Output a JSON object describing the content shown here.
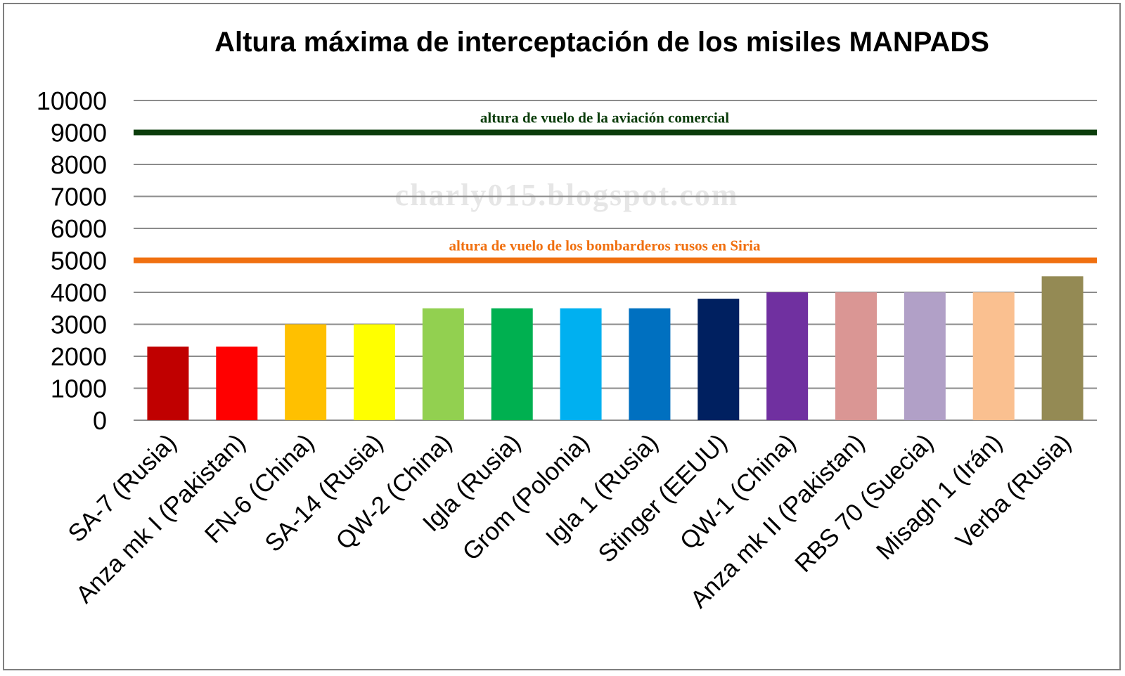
{
  "chart_data": {
    "type": "bar",
    "title": "Altura máxima de interceptación de los misiles MANPADS",
    "xlabel": "",
    "ylabel": "",
    "ylim": [
      0,
      10000
    ],
    "yticks": [
      0,
      1000,
      2000,
      3000,
      4000,
      5000,
      6000,
      7000,
      8000,
      9000,
      10000
    ],
    "grid": true,
    "legend": "none",
    "categories": [
      "SA-7 (Rusia)",
      "Anza mk I (Pakistan)",
      "FN-6 (China)",
      "SA-14 (Rusia)",
      "QW-2 (China)",
      "Igla (Rusia)",
      "Grom (Polonia)",
      "Igla 1 (Rusia)",
      "Stinger (EEUU)",
      "QW-1 (China)",
      "Anza mk II (Pakistan)",
      "RBS 70 (Suecia)",
      "Misagh 1 (Irán)",
      "Verba (Rusia)"
    ],
    "values": [
      2300,
      2300,
      3000,
      3000,
      3500,
      3500,
      3500,
      3500,
      3800,
      4000,
      4000,
      4000,
      4000,
      4500
    ],
    "bar_colors": [
      "#c00000",
      "#ff0000",
      "#ffc000",
      "#ffff00",
      "#92d050",
      "#00b050",
      "#00b0f0",
      "#0070c0",
      "#002060",
      "#7030a0",
      "#da9694",
      "#b1a0c7",
      "#fac090",
      "#948a54"
    ],
    "reference_lines": [
      {
        "value": 9000,
        "label": "altura de vuelo de la aviación comercial",
        "color": "#0b3d0b"
      },
      {
        "value": 5000,
        "label": "altura de vuelo de los bombarderos rusos en Siria",
        "color": "#f07010"
      }
    ],
    "watermark": "charly015.blogspot.com"
  }
}
